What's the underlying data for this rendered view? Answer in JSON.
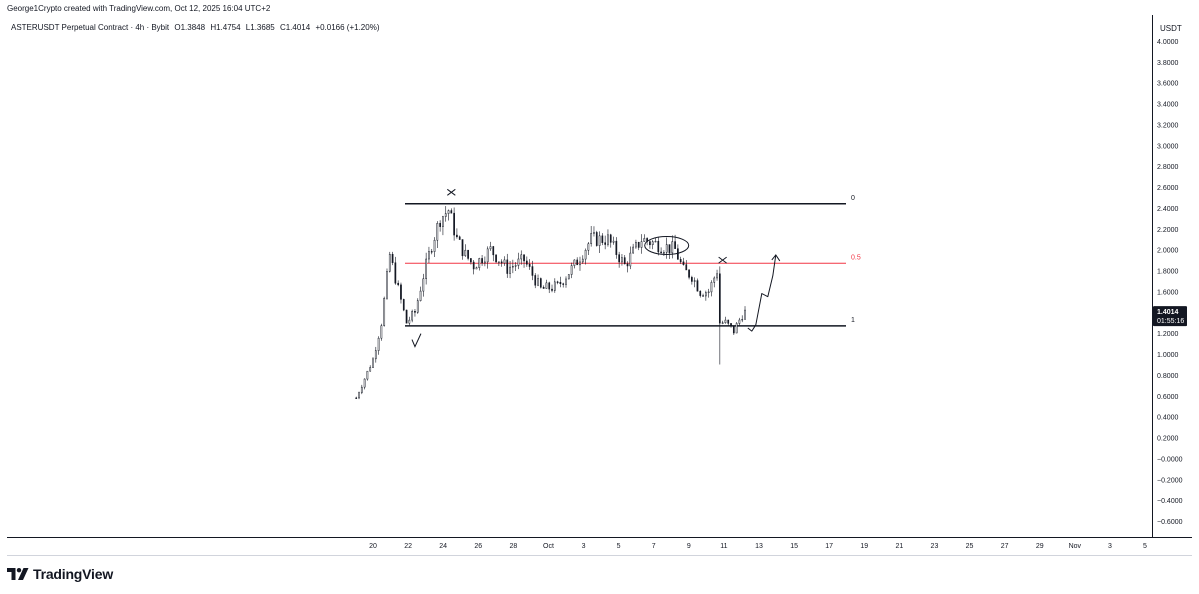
{
  "header": {
    "credit": "George1Crypto created with TradingView.com, Oct 12, 2025 16:04 UTC+2",
    "symbol": "ASTERUSDT Perpetual Contract · 4h · Bybit",
    "open": "O1.3848",
    "high": "H1.4754",
    "low": "L1.3685",
    "close": "C1.4014",
    "change": "+0.0166 (+1.20%)"
  },
  "price_axis": {
    "currency": "USDT",
    "labels": [
      "4.0000",
      "3.8000",
      "3.6000",
      "3.4000",
      "3.2000",
      "3.0000",
      "2.8000",
      "2.6000",
      "2.4000",
      "2.2000",
      "2.0000",
      "1.8000",
      "1.6000",
      "1.4000",
      "1.2000",
      "1.0000",
      "0.8000",
      "0.6000",
      "0.4000",
      "0.2000",
      "−0.0000",
      "−0.2000",
      "−0.4000",
      "−0.6000"
    ],
    "last_price": "1.4014",
    "countdown": "01:55:16"
  },
  "time_axis": {
    "labels": [
      "20",
      "22",
      "24",
      "26",
      "28",
      "Oct",
      "3",
      "5",
      "7",
      "9",
      "11",
      "13",
      "15",
      "17",
      "19",
      "21",
      "23",
      "25",
      "27",
      "29",
      "Nov",
      "3",
      "5"
    ]
  },
  "brand": {
    "name": "TradingView"
  },
  "colors": {
    "up": "#131722",
    "down": "#131722",
    "fib_mid": "#f23645",
    "price_tag": "#131722",
    "axis_text": "#131722"
  },
  "chart_data": {
    "type": "candlestick",
    "title": "ASTERUSDT Perpetual Contract · 4h · Bybit",
    "ylabel": "USDT",
    "ylim": [
      -0.7,
      4.15
    ],
    "x_start": "2025-09-19",
    "candles_per_day": 6,
    "fib_levels": [
      {
        "label": "0",
        "price": 2.44
      },
      {
        "label": "0.5",
        "price": 1.87
      },
      {
        "label": "1",
        "price": 1.27
      }
    ],
    "path_anchors": [
      [
        "2025-09-19",
        0.58
      ],
      [
        "2025-09-20",
        0.95
      ],
      [
        "2025-09-20 12:00",
        1.3
      ],
      [
        "2025-09-21",
        1.95
      ],
      [
        "2025-09-21 12:00",
        1.62
      ],
      [
        "2025-09-22",
        1.3
      ],
      [
        "2025-09-22 12:00",
        1.4
      ],
      [
        "2025-09-23",
        1.75
      ],
      [
        "2025-09-23 12:00",
        2.05
      ],
      [
        "2025-09-24",
        2.3
      ],
      [
        "2025-09-24 12:00",
        2.38
      ],
      [
        "2025-09-25",
        2.1
      ],
      [
        "2025-09-25 12:00",
        1.95
      ],
      [
        "2025-09-26",
        1.85
      ],
      [
        "2025-09-27",
        2.0
      ],
      [
        "2025-09-28",
        1.82
      ],
      [
        "2025-09-29",
        1.9
      ],
      [
        "2025-09-30",
        1.62
      ],
      [
        "2025-10-01",
        1.65
      ],
      [
        "2025-10-02",
        1.85
      ],
      [
        "2025-10-03",
        2.1
      ],
      [
        "2025-10-04",
        2.1
      ],
      [
        "2025-10-05",
        1.85
      ],
      [
        "2025-10-06",
        2.1
      ],
      [
        "2025-10-07",
        2.05
      ],
      [
        "2025-10-08",
        2.0
      ],
      [
        "2025-10-08 12:00",
        1.8
      ],
      [
        "2025-10-09",
        1.75
      ],
      [
        "2025-10-09 12:00",
        1.6
      ],
      [
        "2025-10-10",
        1.6
      ],
      [
        "2025-10-10 12:00",
        1.8
      ],
      [
        "2025-10-10 16:00",
        1.3
      ],
      [
        "2025-10-11",
        1.3
      ],
      [
        "2025-10-11 12:00",
        1.22
      ],
      [
        "2025-10-12",
        1.38
      ],
      [
        "2025-10-12 04:00",
        1.4014
      ]
    ]
  }
}
